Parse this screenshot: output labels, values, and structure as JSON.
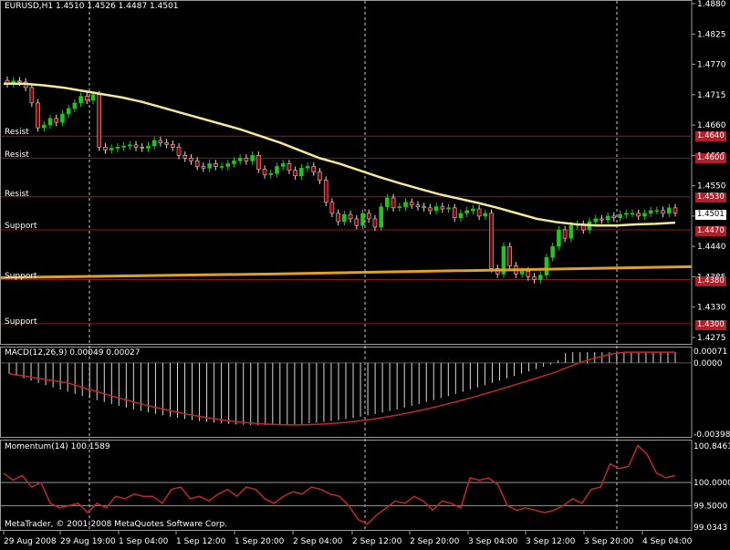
{
  "main_pane": {
    "title": "EURUSD,H1  1.4510 1.4526 1.4487 1.4501",
    "current_price": "1.4501",
    "price_axis_labels": [
      "1.4880",
      "1.4825",
      "1.4770",
      "1.4715",
      "1.4660",
      "1.4605",
      "1.4550",
      "1.4495",
      "1.4440",
      "1.4385",
      "1.4330",
      "1.4275"
    ],
    "levels": [
      {
        "label": "Resist",
        "price": "1.4640",
        "value": 1.464
      },
      {
        "label": "Resist",
        "price": "1.4600",
        "value": 1.46
      },
      {
        "label": "Resist",
        "price": "1.4530",
        "value": 1.453
      },
      {
        "label": "Support",
        "price": "1.4470",
        "value": 1.447
      },
      {
        "label": "Support",
        "price": "1.4380",
        "value": 1.438
      },
      {
        "label": "Support",
        "price": "1.4300",
        "value": 1.43
      }
    ]
  },
  "macd_pane": {
    "title": "MACD(12,26,9) 0.00049 0.00027",
    "axis_labels": [
      "0.00071",
      "0.0000",
      "-0.00398"
    ]
  },
  "momentum_pane": {
    "title": "Momentum(14) 100.1589",
    "axis_labels": [
      "100.8461",
      "100.0000",
      "99.5000",
      "99.0343"
    ]
  },
  "copyright": "MetaTrader, © 2001-2008 MetaQuotes Software Corp.",
  "time_axis_labels": [
    "29 Aug 2008",
    "29 Aug 19:00",
    "1 Sep 04:00",
    "1 Sep 12:00",
    "1 Sep 20:00",
    "2 Sep 04:00",
    "2 Sep 12:00",
    "2 Sep 20:00",
    "3 Sep 04:00",
    "3 Sep 12:00",
    "3 Sep 20:00",
    "4 Sep 04:00"
  ],
  "chart_data": {
    "type": "line",
    "title": "EURUSD,H1  1.4510 1.4526 1.4487 1.4501",
    "symbol": "EURUSD",
    "timeframe": "H1",
    "ohlc_last": {
      "open": 1.451,
      "high": 1.4526,
      "low": 1.4487,
      "close": 1.4501
    },
    "ylim": [
      1.425,
      1.49
    ],
    "x_labels": [
      "29 Aug 2008",
      "29 Aug 19:00",
      "1 Sep 04:00",
      "1 Sep 12:00",
      "1 Sep 20:00",
      "2 Sep 04:00",
      "2 Sep 12:00",
      "2 Sep 20:00",
      "3 Sep 04:00",
      "3 Sep 12:00",
      "3 Sep 20:00",
      "4 Sep 04:00"
    ],
    "close": [
      1.4735,
      1.474,
      1.4738,
      1.4728,
      1.47,
      1.4655,
      1.466,
      1.4672,
      1.4665,
      1.468,
      1.469,
      1.47,
      1.4712,
      1.4705,
      1.4715,
      1.462,
      1.4615,
      1.4618,
      1.462,
      1.4622,
      1.4624,
      1.462,
      1.4618,
      1.4622,
      1.4632,
      1.4628,
      1.4625,
      1.462,
      1.4605,
      1.46,
      1.4595,
      1.4585,
      1.4582,
      1.459,
      1.4585,
      1.4585,
      1.459,
      1.4595,
      1.46,
      1.4595,
      1.4605,
      1.458,
      1.457,
      1.4572,
      1.4585,
      1.459,
      1.4578,
      1.4568,
      1.4582,
      1.4585,
      1.4575,
      1.456,
      1.452,
      1.45,
      1.4485,
      1.4498,
      1.449,
      1.4478,
      1.45,
      1.449,
      1.4475,
      1.4512,
      1.4528,
      1.451,
      1.4512,
      1.452,
      1.4515,
      1.4512,
      1.451,
      1.4505,
      1.4512,
      1.4508,
      1.451,
      1.4492,
      1.45,
      1.4505,
      1.4508,
      1.4495,
      1.45,
      1.44,
      1.439,
      1.444,
      1.4405,
      1.439,
      1.4395,
      1.4385,
      1.438,
      1.4388,
      1.442,
      1.444,
      1.447,
      1.4455,
      1.4478,
      1.448,
      1.447,
      1.4485,
      1.449,
      1.4488,
      1.4495,
      1.4492,
      1.4498,
      1.45,
      1.45,
      1.4495,
      1.45,
      1.4505,
      1.4505,
      1.45,
      1.451,
      1.4501
    ],
    "ma": [
      1.4735,
      1.4735,
      1.4732,
      1.4728,
      1.4722,
      1.4716,
      1.471,
      1.4702,
      1.4692,
      1.4682,
      1.4672,
      1.4662,
      1.4652,
      1.464,
      1.4628,
      1.4614,
      1.46,
      1.459,
      1.4578,
      1.4566,
      1.4555,
      1.4545,
      1.4535,
      1.4527,
      1.4519,
      1.451,
      1.45,
      1.449,
      1.4484,
      1.448,
      1.4478,
      1.4478,
      1.448,
      1.4481,
      1.4483
    ],
    "ma_slow_level": 1.441,
    "macd_axis": [
      -0.00398,
      0.00071
    ],
    "momentum_axis": [
      99.0343,
      100.8461
    ]
  }
}
